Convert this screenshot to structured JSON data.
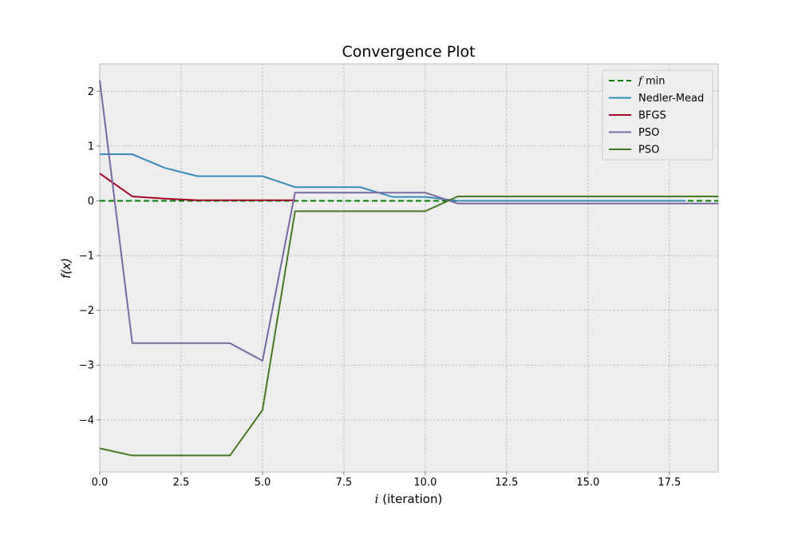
{
  "chart_data": {
    "type": "line",
    "title": "Convergence Plot",
    "xlabel_var": "i",
    "xlabel_rest": " (iteration)",
    "ylabel": "f(x)",
    "xlim": [
      0,
      19
    ],
    "ylim": [
      -4.95,
      2.5
    ],
    "xticks": [
      0,
      2.5,
      5,
      7.5,
      10,
      12.5,
      15,
      17.5
    ],
    "xtick_labels": [
      "0.0",
      "2.5",
      "5.0",
      "7.5",
      "10.0",
      "12.5",
      "15.0",
      "17.5"
    ],
    "yticks": [
      2,
      1,
      0,
      -1,
      -2,
      -3,
      -4
    ],
    "ytick_labels": [
      "2",
      "1",
      "0",
      "−1",
      "−2",
      "−3",
      "−4"
    ],
    "grid": true,
    "legend_position": "top-right",
    "fmin": {
      "name_var": "f",
      "name_rest": " min",
      "value": 0,
      "color": "#008000",
      "style": "dashed"
    },
    "series": [
      {
        "name": "Nedler-Mead",
        "color": "#348abd",
        "x": [
          0,
          1,
          2,
          3,
          4,
          5,
          6,
          7,
          8,
          9,
          10,
          11,
          12,
          13,
          14,
          15,
          16,
          17,
          18
        ],
        "y": [
          0.85,
          0.85,
          0.6,
          0.45,
          0.45,
          0.45,
          0.25,
          0.25,
          0.25,
          0.07,
          0.07,
          0.0,
          0.0,
          0.0,
          0.0,
          0.0,
          0.0,
          0.0,
          0.0
        ]
      },
      {
        "name": "BFGS",
        "color": "#a60628",
        "x": [
          0,
          1,
          2,
          3,
          4,
          5,
          6
        ],
        "y": [
          0.5,
          0.08,
          0.04,
          0.01,
          0.01,
          0.01,
          0.01
        ]
      },
      {
        "name": "PSO",
        "color": "#7a68a6",
        "x": [
          0,
          1,
          2,
          3,
          4,
          5,
          6,
          7,
          8,
          9,
          10,
          11,
          12,
          13,
          14,
          15,
          16,
          17,
          18,
          19
        ],
        "y": [
          2.2,
          -2.6,
          -2.6,
          -2.6,
          -2.6,
          -2.92,
          0.15,
          0.15,
          0.15,
          0.15,
          0.15,
          -0.05,
          -0.05,
          -0.05,
          -0.05,
          -0.05,
          -0.05,
          -0.05,
          -0.05,
          -0.05
        ]
      },
      {
        "name": "PSO",
        "color": "#467821",
        "x": [
          0,
          1,
          2,
          3,
          4,
          5,
          6,
          7,
          8,
          9,
          10,
          11,
          12,
          13,
          14,
          15,
          16,
          17,
          18,
          19
        ],
        "y": [
          -4.52,
          -4.65,
          -4.65,
          -4.65,
          -4.65,
          -3.82,
          -0.19,
          -0.19,
          -0.19,
          -0.19,
          -0.19,
          0.08,
          0.08,
          0.08,
          0.08,
          0.08,
          0.08,
          0.08,
          0.08,
          0.08
        ]
      }
    ]
  }
}
